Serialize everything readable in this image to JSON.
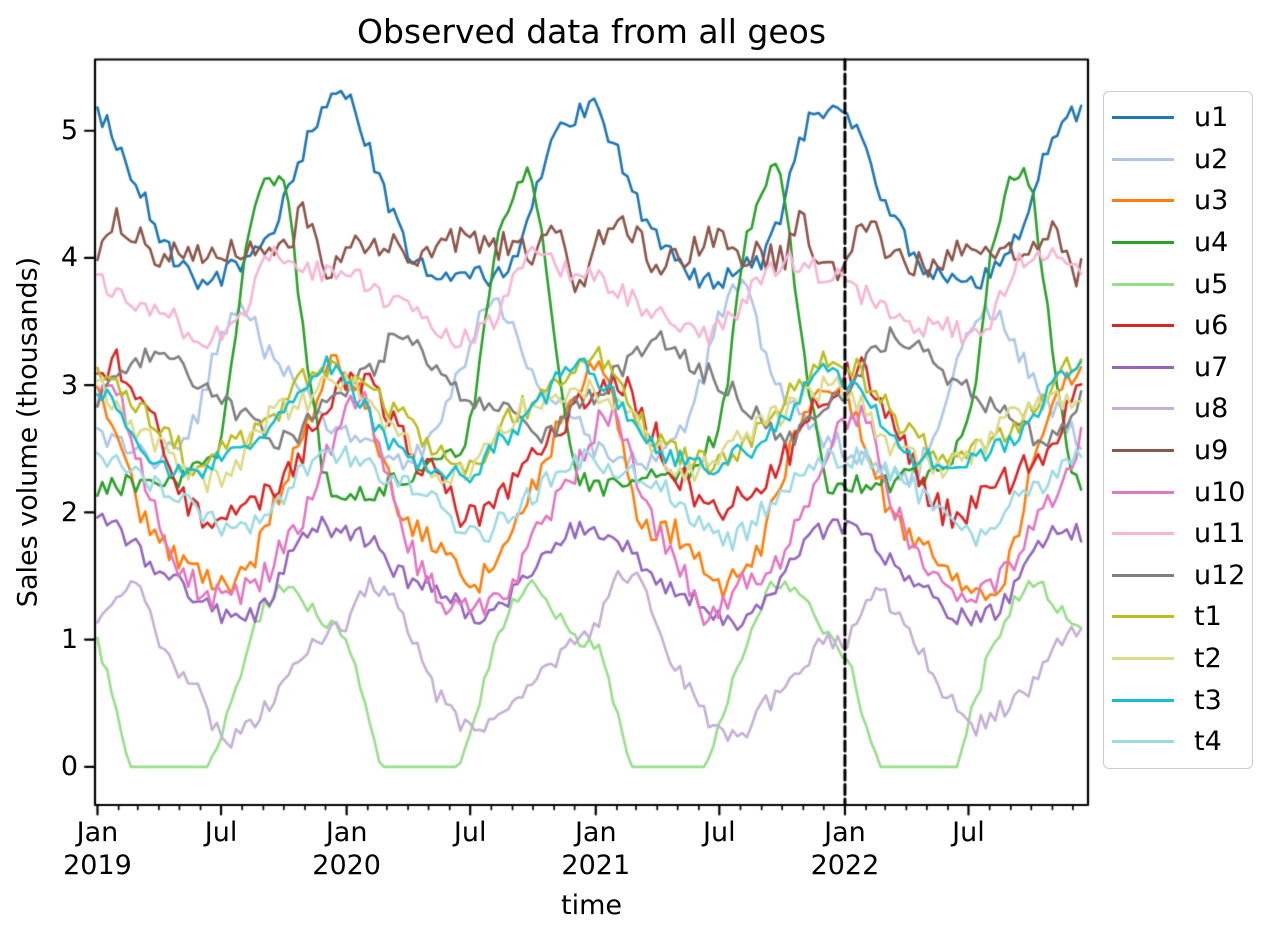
{
  "title": "Observed data from all geos",
  "xlabel": "time",
  "ylabel": "Sales volume (thousands)",
  "chart_data": {
    "type": "line",
    "title": "Observed data from all geos",
    "xlabel": "time",
    "ylabel": "Sales volume (thousands)",
    "x_start": 2019.0,
    "x_end": 2022.967,
    "frequency": "weekly",
    "xlim": [
      2018.99,
      2022.9756
    ],
    "ylim": [
      -0.3,
      5.56
    ],
    "grid": false,
    "legend_position": "right-outside",
    "x_ticks": [
      {
        "month": "Jan",
        "year": "2019",
        "t": 2019.0
      },
      {
        "month": "Jul",
        "year": "",
        "t": 2019.4959
      },
      {
        "month": "Jan",
        "year": "2020",
        "t": 2020.0
      },
      {
        "month": "Jul",
        "year": "",
        "t": 2020.4959
      },
      {
        "month": "Jan",
        "year": "2021",
        "t": 2021.0
      },
      {
        "month": "Jul",
        "year": "",
        "t": 2021.4959
      },
      {
        "month": "Jan",
        "year": "2022",
        "t": 2022.0
      },
      {
        "month": "Jul",
        "year": "",
        "t": 2022.4959
      }
    ],
    "y_ticks": [
      "0",
      "1",
      "2",
      "3",
      "4",
      "5"
    ],
    "vline": {
      "t": 2022.0,
      "style": "dashed",
      "color": "#000000"
    },
    "series": [
      {
        "name": "u1",
        "color": "#1f77b4",
        "monthly_profile": [
          5.18,
          4.82,
          4.45,
          4.12,
          3.92,
          3.85,
          3.82,
          3.9,
          4.0,
          4.45,
          4.95,
          5.15
        ],
        "noise": 0.085,
        "slow": 0.08
      },
      {
        "name": "u2",
        "color": "#aec7e8",
        "monthly_profile": [
          2.6,
          2.5,
          2.38,
          2.35,
          2.5,
          2.9,
          3.45,
          3.65,
          3.35,
          3.05,
          2.85,
          2.7
        ],
        "noise": 0.09,
        "slow": 0.14
      },
      {
        "name": "u3",
        "color": "#ff7f0e",
        "monthly_profile": [
          3.05,
          2.65,
          2.15,
          1.85,
          1.7,
          1.6,
          1.42,
          1.45,
          1.75,
          2.3,
          2.75,
          3.0
        ],
        "noise": 0.11,
        "slow": 0.14
      },
      {
        "name": "u4",
        "color": "#2ca02c",
        "monthly_profile": [
          2.15,
          2.2,
          2.25,
          2.3,
          2.32,
          2.4,
          2.7,
          3.9,
          4.55,
          4.5,
          3.3,
          2.3
        ],
        "noise": 0.09,
        "slow": 0.06
      },
      {
        "name": "u5",
        "color": "#98df8a",
        "monthly_profile": [
          0.95,
          0.4,
          -0.15,
          -0.33,
          -0.3,
          -0.15,
          0.35,
          0.85,
          1.25,
          1.38,
          1.25,
          1.05
        ],
        "noise": 0.07,
        "slow": 0.08,
        "clamp_min": 0
      },
      {
        "name": "u6",
        "color": "#d62728",
        "monthly_profile": [
          3.0,
          3.1,
          2.8,
          2.45,
          2.2,
          2.05,
          1.98,
          2.05,
          2.2,
          2.35,
          2.6,
          2.85
        ],
        "noise": 0.13,
        "slow": 0.12
      },
      {
        "name": "u7",
        "color": "#9467bd",
        "monthly_profile": [
          1.9,
          1.82,
          1.65,
          1.5,
          1.4,
          1.27,
          1.13,
          1.15,
          1.3,
          1.55,
          1.8,
          1.9
        ],
        "noise": 0.08,
        "slow": 0.08
      },
      {
        "name": "u8",
        "color": "#c5b0d5",
        "monthly_profile": [
          1.05,
          1.35,
          1.35,
          1.1,
          0.78,
          0.45,
          0.24,
          0.32,
          0.45,
          0.58,
          0.8,
          1.0
        ],
        "noise": 0.08,
        "slow": 0.1
      },
      {
        "name": "u9",
        "color": "#8c564b",
        "monthly_profile": [
          4.05,
          4.25,
          4.1,
          3.95,
          4.0,
          4.08,
          4.08,
          4.02,
          4.08,
          4.05,
          4.28,
          3.9
        ],
        "noise": 0.12,
        "slow": 0.09
      },
      {
        "name": "u10",
        "color": "#e377c2",
        "monthly_profile": [
          2.8,
          2.85,
          2.35,
          1.8,
          1.5,
          1.35,
          1.3,
          1.38,
          1.5,
          1.75,
          2.05,
          2.45
        ],
        "noise": 0.11,
        "slow": 0.14
      },
      {
        "name": "u11",
        "color": "#f7b6d2",
        "monthly_profile": [
          3.82,
          3.73,
          3.65,
          3.58,
          3.47,
          3.4,
          3.43,
          3.58,
          3.9,
          4.02,
          3.95,
          3.85
        ],
        "noise": 0.09,
        "slow": 0.07
      },
      {
        "name": "u12",
        "color": "#7f7f7f",
        "monthly_profile": [
          3.0,
          3.15,
          3.28,
          3.3,
          3.15,
          3.05,
          2.95,
          2.82,
          2.7,
          2.6,
          2.65,
          2.9
        ],
        "noise": 0.09,
        "slow": 0.1
      },
      {
        "name": "t1",
        "color": "#bcbd22",
        "monthly_profile": [
          3.15,
          3.0,
          2.8,
          2.62,
          2.5,
          2.42,
          2.45,
          2.55,
          2.7,
          2.85,
          3.0,
          3.15
        ],
        "noise": 0.1,
        "slow": 0.09
      },
      {
        "name": "t2",
        "color": "#dbdb8d",
        "monthly_profile": [
          2.95,
          2.85,
          2.62,
          2.47,
          2.36,
          2.3,
          2.36,
          2.5,
          2.7,
          2.82,
          2.88,
          2.95
        ],
        "noise": 0.1,
        "slow": 0.09
      },
      {
        "name": "t3",
        "color": "#17becf",
        "monthly_profile": [
          3.05,
          2.85,
          2.6,
          2.45,
          2.38,
          2.33,
          2.38,
          2.47,
          2.57,
          2.77,
          3.0,
          3.15
        ],
        "noise": 0.08,
        "slow": 0.07
      },
      {
        "name": "t4",
        "color": "#9edae5",
        "monthly_profile": [
          2.42,
          2.38,
          2.28,
          2.22,
          2.1,
          1.95,
          1.83,
          1.87,
          2.02,
          2.18,
          2.32,
          2.42
        ],
        "noise": 0.09,
        "slow": 0.07
      }
    ]
  }
}
